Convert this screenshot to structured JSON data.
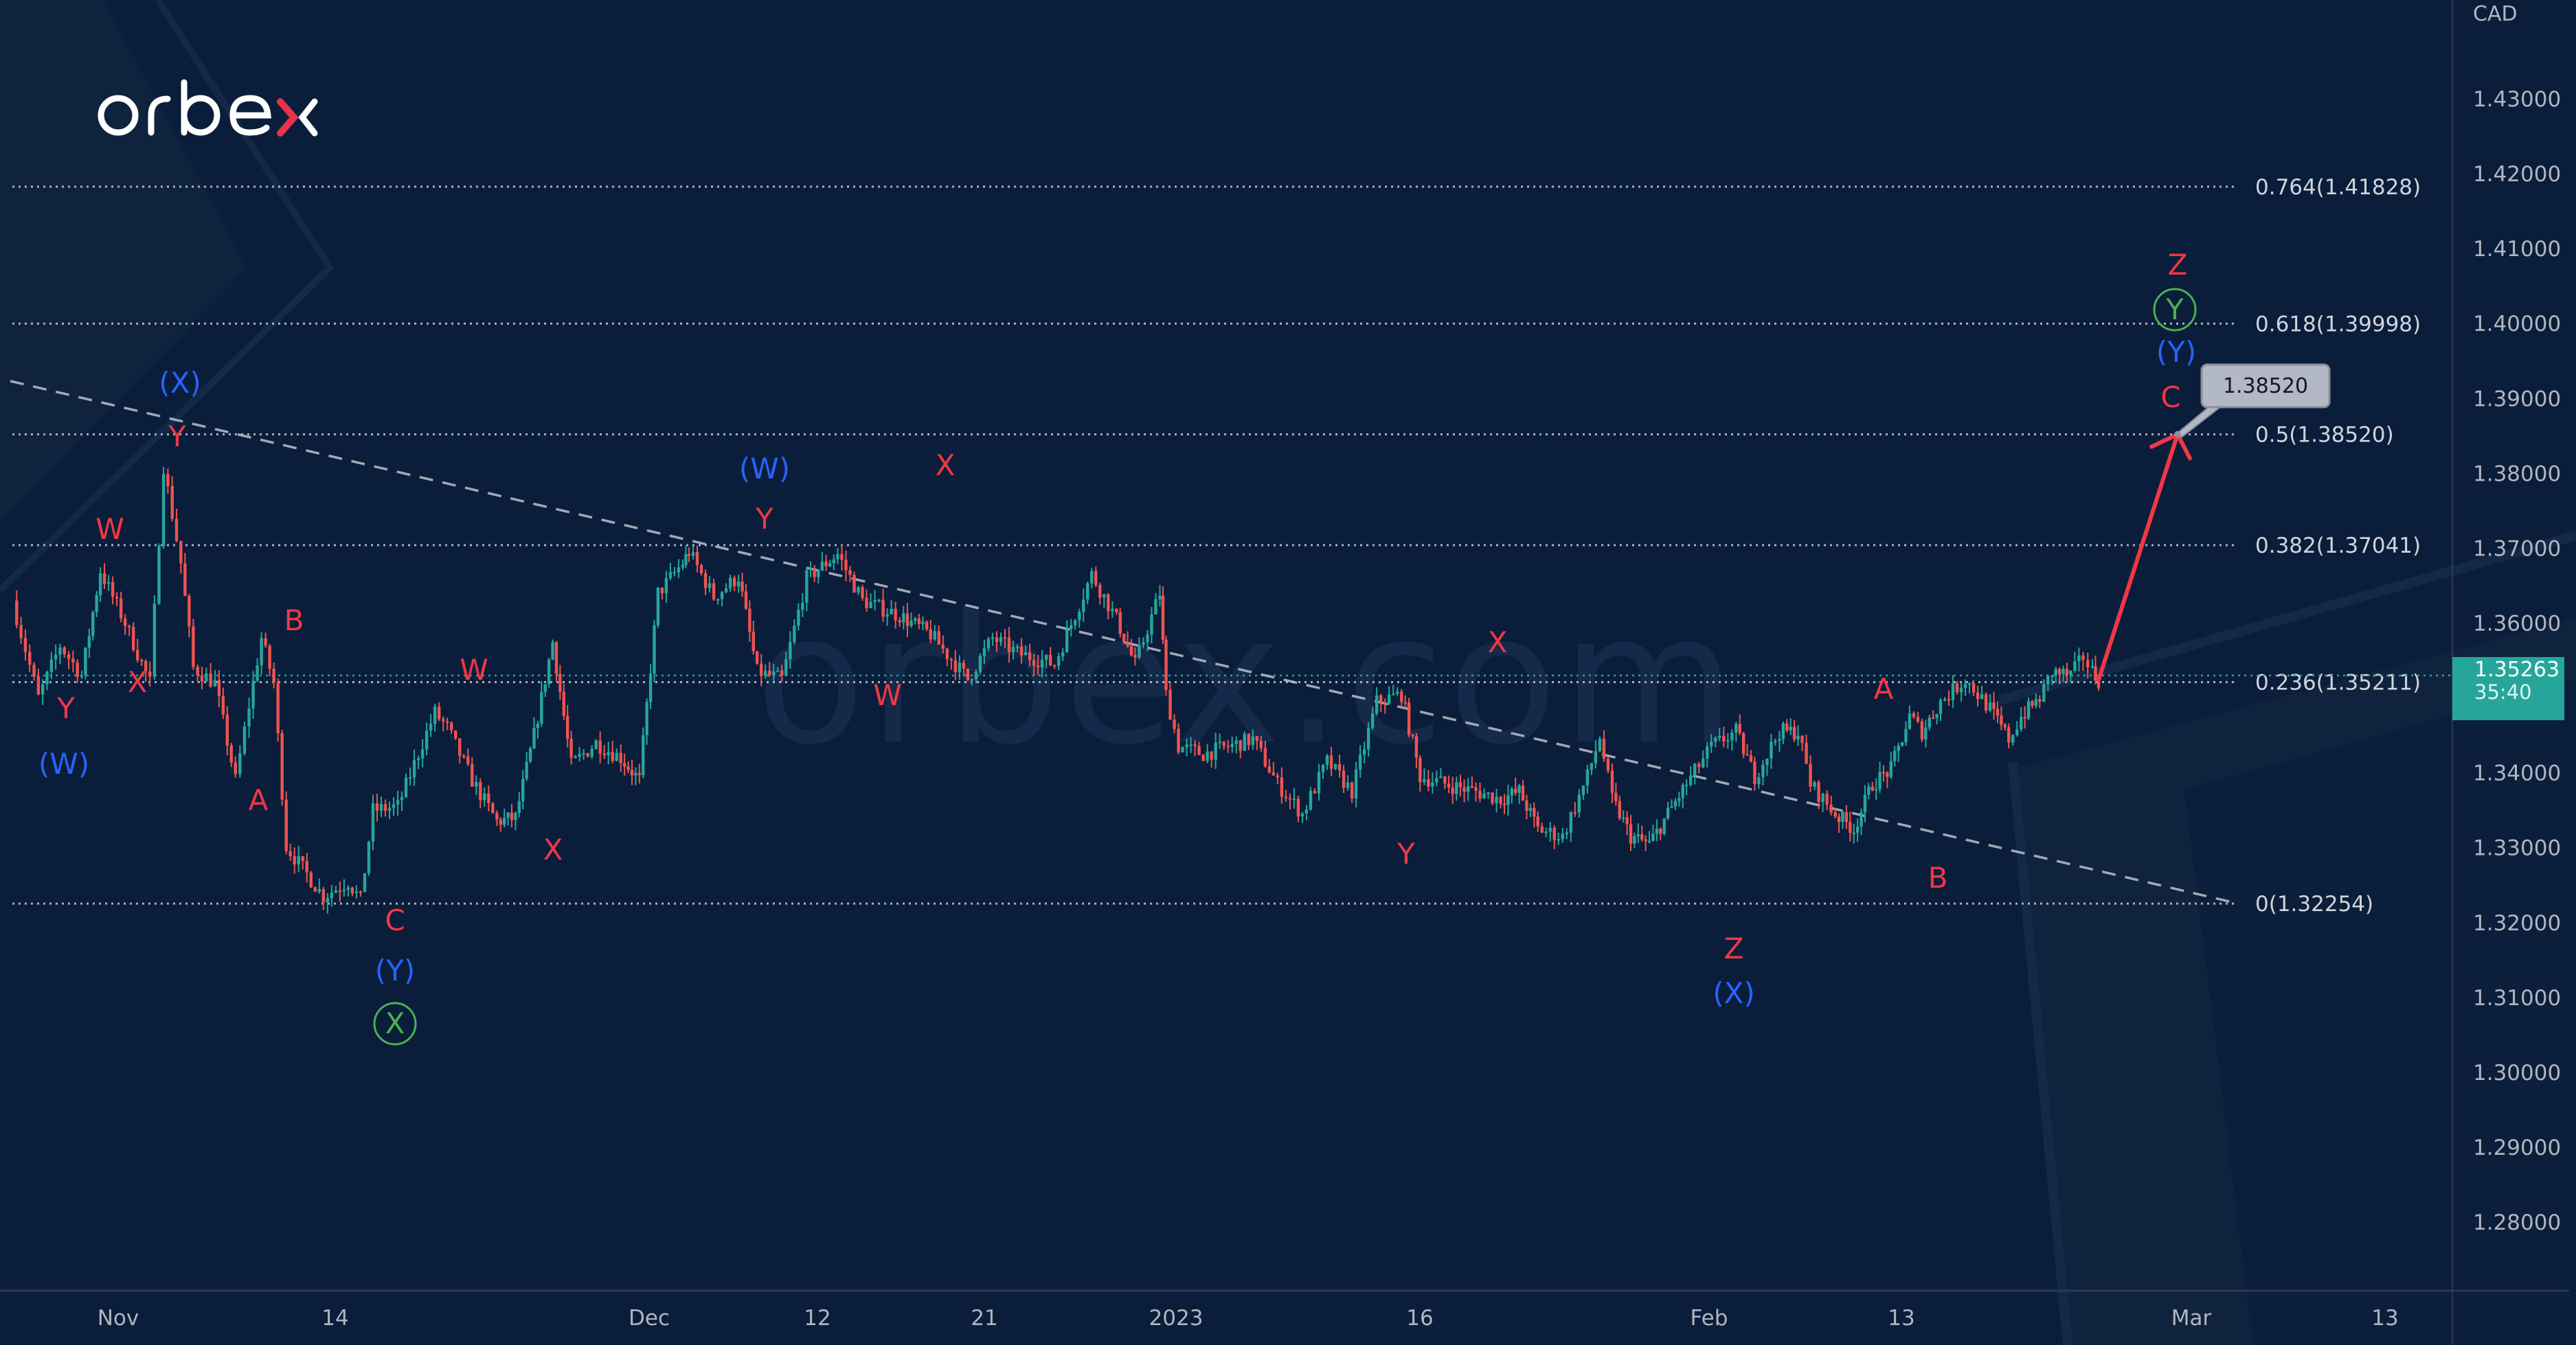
{
  "brand": {
    "name": "orbex",
    "watermark": "orbex.com",
    "accent": "#e8334a"
  },
  "chart": {
    "symbol_currency": "CAD",
    "current_price": "1.35263",
    "countdown": "35:40",
    "target_callout": "1.38520"
  },
  "chart_data": {
    "type": "candlestick",
    "title": "",
    "instrument_quote_currency": "CAD",
    "y_axis": {
      "ticks": [
        "1.43000",
        "1.42000",
        "1.41000",
        "1.40000",
        "1.39000",
        "1.38000",
        "1.37000",
        "1.36000",
        "1.35000",
        "1.34000",
        "1.33000",
        "1.32000",
        "1.31000",
        "1.30000",
        "1.29000",
        "1.28000"
      ],
      "range": [
        1.275,
        1.437
      ]
    },
    "x_axis": {
      "ticks": [
        "Nov",
        "14",
        "Dec",
        "12",
        "21",
        "2023",
        "16",
        "Feb",
        "13",
        "Mar",
        "13"
      ]
    },
    "fibonacci_levels": [
      {
        "ratio": "0.764",
        "price": "1.41828",
        "label": "0.764(1.41828)"
      },
      {
        "ratio": "0.618",
        "price": "1.39998",
        "label": "0.618(1.39998)"
      },
      {
        "ratio": "0.5",
        "price": "1.38520",
        "label": "0.5(1.38520)"
      },
      {
        "ratio": "0.382",
        "price": "1.37041",
        "label": "0.382(1.37041)"
      },
      {
        "ratio": "0.236",
        "price": "1.35211",
        "label": "0.236(1.35211)"
      },
      {
        "ratio": "0",
        "price": "1.32254",
        "label": "0(1.32254)"
      }
    ],
    "last_price": 1.35263,
    "last_price_countdown": "35:40",
    "projection": {
      "from_price": 1.3524,
      "to_price": 1.3852,
      "target_label": "1.38520"
    },
    "trendline": {
      "style": "dashed",
      "from_price": 1.393,
      "to_price": 1.3225
    },
    "wave_labels": [
      {
        "text": "(W)",
        "color": "blue",
        "approx_price": 1.341,
        "date": "early Nov"
      },
      {
        "text": "Y",
        "color": "red",
        "approx_price": 1.346,
        "date": "early Nov"
      },
      {
        "text": "W",
        "color": "red",
        "approx_price": 1.369,
        "date": "early Nov"
      },
      {
        "text": "X",
        "color": "red",
        "approx_price": 1.351,
        "date": "early Nov"
      },
      {
        "text": "(X)",
        "color": "blue",
        "approx_price": 1.391,
        "date": "Nov 4"
      },
      {
        "text": "Y",
        "color": "red",
        "approx_price": 1.386,
        "date": "Nov 4"
      },
      {
        "text": "A",
        "color": "red",
        "approx_price": 1.338,
        "date": "Nov 10"
      },
      {
        "text": "B",
        "color": "red",
        "approx_price": 1.359,
        "date": "Nov 11"
      },
      {
        "text": "C",
        "color": "red",
        "approx_price": 1.3185,
        "date": "Nov 16"
      },
      {
        "text": "(Y)",
        "color": "blue",
        "approx_price": 1.312,
        "date": "Nov 16"
      },
      {
        "text": "X",
        "color": "green",
        "circled": true,
        "approx_price": 1.305,
        "date": "Nov 16"
      },
      {
        "text": "W",
        "color": "red",
        "approx_price": 1.353,
        "date": "Nov 21"
      },
      {
        "text": "X",
        "color": "red",
        "approx_price": 1.333,
        "date": "Nov 28"
      },
      {
        "text": "(W)",
        "color": "blue",
        "approx_price": 1.377,
        "date": "Dec 8"
      },
      {
        "text": "Y",
        "color": "red",
        "approx_price": 1.37,
        "date": "Dec 8"
      },
      {
        "text": "W",
        "color": "red",
        "approx_price": 1.347,
        "date": "Dec 15"
      },
      {
        "text": "X",
        "color": "red",
        "approx_price": 1.372,
        "date": "Dec 19"
      },
      {
        "text": "Y",
        "color": "red",
        "approx_price": 1.332,
        "date": "Jan 16"
      },
      {
        "text": "X",
        "color": "red",
        "approx_price": 1.355,
        "date": "Jan 20"
      },
      {
        "text": "Z",
        "color": "red",
        "approx_price": 1.316,
        "date": "Feb 3"
      },
      {
        "text": "(X)",
        "color": "blue",
        "approx_price": 1.31,
        "date": "Feb 3"
      },
      {
        "text": "A",
        "color": "red",
        "approx_price": 1.349,
        "date": "Feb 10"
      },
      {
        "text": "B",
        "color": "red",
        "approx_price": 1.3235,
        "date": "Feb 15"
      },
      {
        "text": "C",
        "color": "red",
        "approx_price": 1.3875,
        "date": "projected"
      },
      {
        "text": "(Y)",
        "color": "blue",
        "approx_price": 1.394,
        "date": "projected"
      },
      {
        "text": "Y",
        "color": "green",
        "circled": true,
        "approx_price": 1.4,
        "date": "projected"
      },
      {
        "text": "Z",
        "color": "red",
        "approx_price": 1.406,
        "date": "projected"
      }
    ],
    "series_colors": {
      "up": "#26a69a",
      "down": "#ef5350",
      "projection_arrow": "#f23645"
    },
    "grid": false,
    "legend": "none"
  },
  "colors": {
    "background": "#0a1e3b",
    "axis_text": "#b2b5be",
    "wave_red": "#f23645",
    "wave_blue": "#2962ff",
    "wave_green": "#4caf50",
    "price_tag": "#26a69a"
  }
}
